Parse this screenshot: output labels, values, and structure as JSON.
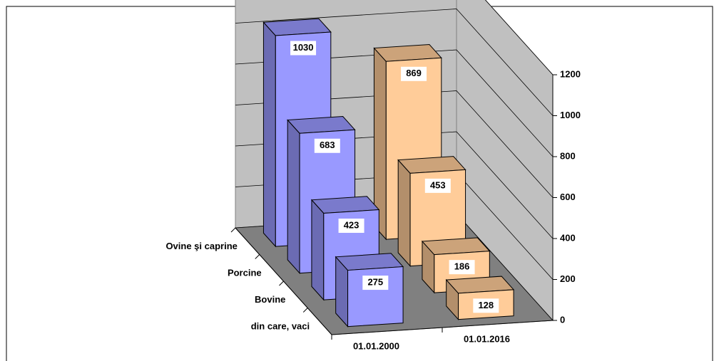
{
  "chart_data": {
    "type": "bar",
    "categories": [
      "Ovine şi caprine",
      "Porcine",
      "Bovine",
      "din care, vaci"
    ],
    "series": [
      {
        "name": "01.01.2000",
        "color": "#9999ff",
        "values": [
          1030,
          683,
          423,
          275
        ]
      },
      {
        "name": "01.01.2016",
        "color": "#ffcc99",
        "values": [
          869,
          453,
          186,
          128
        ]
      }
    ],
    "ylim": [
      0,
      1200
    ],
    "yticks": [
      0,
      200,
      400,
      600,
      800,
      1000,
      1200
    ],
    "grid": true
  }
}
